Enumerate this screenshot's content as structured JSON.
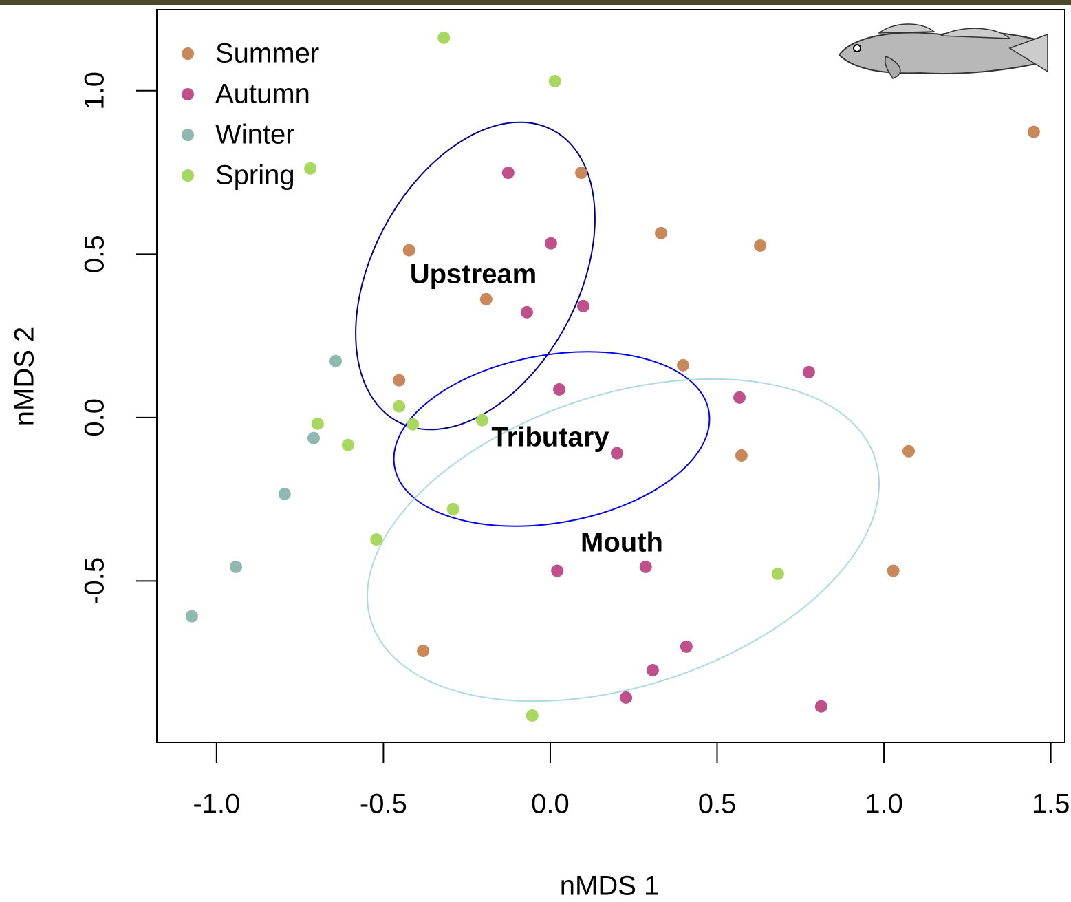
{
  "chart_data": {
    "type": "scatter",
    "x_label": "nMDS 1",
    "y_label": "nMDS 2",
    "xlim": [
      -1.179,
      1.542
    ],
    "ylim": [
      -0.994,
      1.248
    ],
    "xticks": [
      {
        "value": -1.0,
        "label": "-1.0"
      },
      {
        "value": -0.5,
        "label": "-0.5"
      },
      {
        "value": 0,
        "label": "0.0"
      },
      {
        "value": 0.5,
        "label": "0.5"
      },
      {
        "value": 1.0,
        "label": "1.0"
      },
      {
        "value": 1.5,
        "label": "1.5"
      }
    ],
    "yticks": [
      {
        "value": -0.5,
        "label": "-0.5"
      },
      {
        "value": 0,
        "label": "0.0"
      },
      {
        "value": 0.5,
        "label": "0.5"
      },
      {
        "value": 1.0,
        "label": "1.0"
      }
    ],
    "legend": "top-left",
    "annotations": [
      {
        "text": "Upstream",
        "color": "#00008b"
      },
      {
        "text": "Tributary",
        "color": "#0000ee"
      },
      {
        "text": "Mouth",
        "color": "#add8e6"
      }
    ],
    "series": [
      {
        "name": "Summer",
        "color": "#c8885a",
        "x": [
          1.449,
          0.093,
          -0.423,
          0.332,
          0.629,
          -0.192,
          0.398,
          -0.453,
          0.573,
          1.074,
          1.028,
          -0.381
        ],
        "values": [
          0.874,
          0.749,
          0.512,
          0.564,
          0.526,
          0.362,
          0.16,
          0.114,
          -0.116,
          -0.103,
          -0.469,
          -0.714
        ]
      },
      {
        "name": "Autumn",
        "color": "#c0508a",
        "x": [
          -0.126,
          0.002,
          -0.07,
          0.099,
          0.775,
          0.027,
          0.567,
          0.2,
          0.021,
          0.286,
          0.408,
          0.307,
          0.227,
          0.812
        ],
        "values": [
          0.749,
          0.533,
          0.322,
          0.341,
          0.139,
          0.086,
          0.061,
          -0.109,
          -0.469,
          -0.457,
          -0.701,
          -0.773,
          -0.857,
          -0.884
        ]
      },
      {
        "name": "Winter",
        "color": "#8fb8b0",
        "x": [
          -0.643,
          -0.709,
          -0.796,
          -0.942,
          -1.074
        ],
        "values": [
          0.173,
          -0.063,
          -0.234,
          -0.457,
          -0.608
        ]
      },
      {
        "name": "Spring",
        "color": "#a8d860",
        "x": [
          -0.319,
          0.014,
          -0.719,
          -0.453,
          -0.412,
          -0.697,
          -0.606,
          -0.204,
          -0.291,
          -0.521,
          0.682,
          -0.054
        ],
        "values": [
          1.162,
          1.029,
          0.762,
          0.034,
          -0.021,
          -0.019,
          -0.084,
          -0.008,
          -0.28,
          -0.373,
          -0.478,
          -0.912
        ]
      }
    ]
  }
}
